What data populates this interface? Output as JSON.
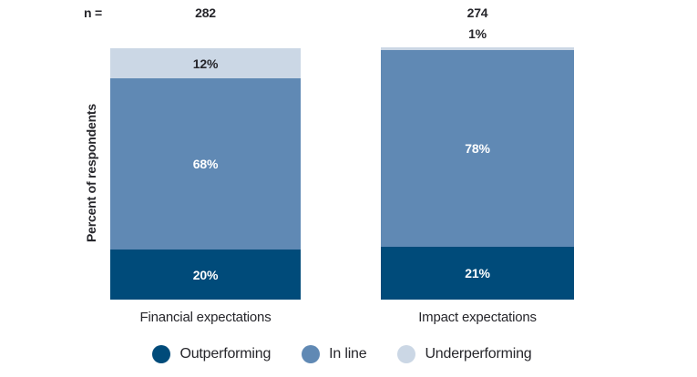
{
  "chart_data": {
    "type": "bar",
    "stacked": true,
    "n_label": "n =",
    "ylabel": "Percent of respondents",
    "xlabel": "",
    "categories": [
      "Financial expectations",
      "Impact expectations"
    ],
    "n_values": [
      "282",
      "274"
    ],
    "series": [
      {
        "name": "Outperforming",
        "values": [
          20,
          21
        ],
        "labels": [
          "20%",
          "21%"
        ],
        "color": "#004B7A",
        "label_color": "#FFFFFF"
      },
      {
        "name": "In line",
        "values": [
          68,
          78
        ],
        "labels": [
          "68%",
          "78%"
        ],
        "color": "#6089B4",
        "label_color": "#FFFFFF"
      },
      {
        "name": "Underperforming",
        "values": [
          12,
          1
        ],
        "labels": [
          "12%",
          "1%"
        ],
        "color": "#CBD7E5",
        "label_color": "#26262B"
      }
    ],
    "ylim": [
      0,
      100
    ],
    "grid": false,
    "legend_position": "bottom",
    "text_color": "#26262B",
    "background": "#FFFFFF"
  }
}
